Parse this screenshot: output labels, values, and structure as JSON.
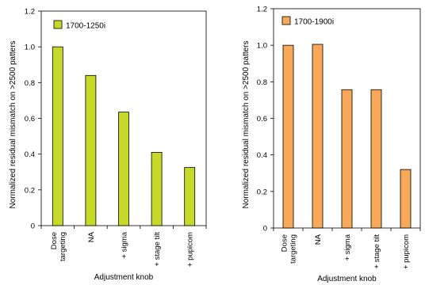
{
  "chart_data": [
    {
      "type": "bar",
      "categories": [
        "Dose targeting",
        "NA",
        "+ sigma",
        "+ stage tilt",
        "+ pupicom"
      ],
      "category_lines": [
        [
          "Dose",
          "targeting"
        ],
        [
          "NA"
        ],
        [
          "+ sigma"
        ],
        [
          "+ stage tilt"
        ],
        [
          "+ pupicom"
        ]
      ],
      "series": [
        {
          "name": "1700-1250i",
          "values": [
            1.0,
            0.84,
            0.635,
            0.41,
            0.325
          ]
        }
      ],
      "xlabel": "Adjustment knob",
      "ylabel": "Normalized residual mismatch on >2500 patters",
      "ylim": [
        0,
        1.2
      ],
      "yticks": [
        "0",
        "0.2",
        "0.4",
        "0.6",
        "0.8",
        "1.0",
        "1.2"
      ],
      "bar_color": "#c6d92a",
      "grid": false,
      "legend": "top-left"
    },
    {
      "type": "bar",
      "categories": [
        "Dose targeting",
        "NA",
        "+ sigma",
        "+ stage tilt",
        "+ pupicom"
      ],
      "category_lines": [
        [
          "Dose",
          "targeting"
        ],
        [
          "NA"
        ],
        [
          "+ sigma"
        ],
        [
          "+ stage tilt"
        ],
        [
          "+ pupicom"
        ]
      ],
      "series": [
        {
          "name": "1700-1900i",
          "values": [
            1.0,
            1.005,
            0.757,
            0.757,
            0.32
          ]
        }
      ],
      "xlabel": "Adjustment knob",
      "ylabel": "Normalized residual mismatch on >2500 patters",
      "ylim": [
        0,
        1.2
      ],
      "yticks": [
        "0",
        "0.2",
        "0.4",
        "0.6",
        "0.8",
        "1.0",
        "1.2"
      ],
      "bar_color": "#f7a858",
      "grid": false,
      "legend": "top-left"
    }
  ]
}
